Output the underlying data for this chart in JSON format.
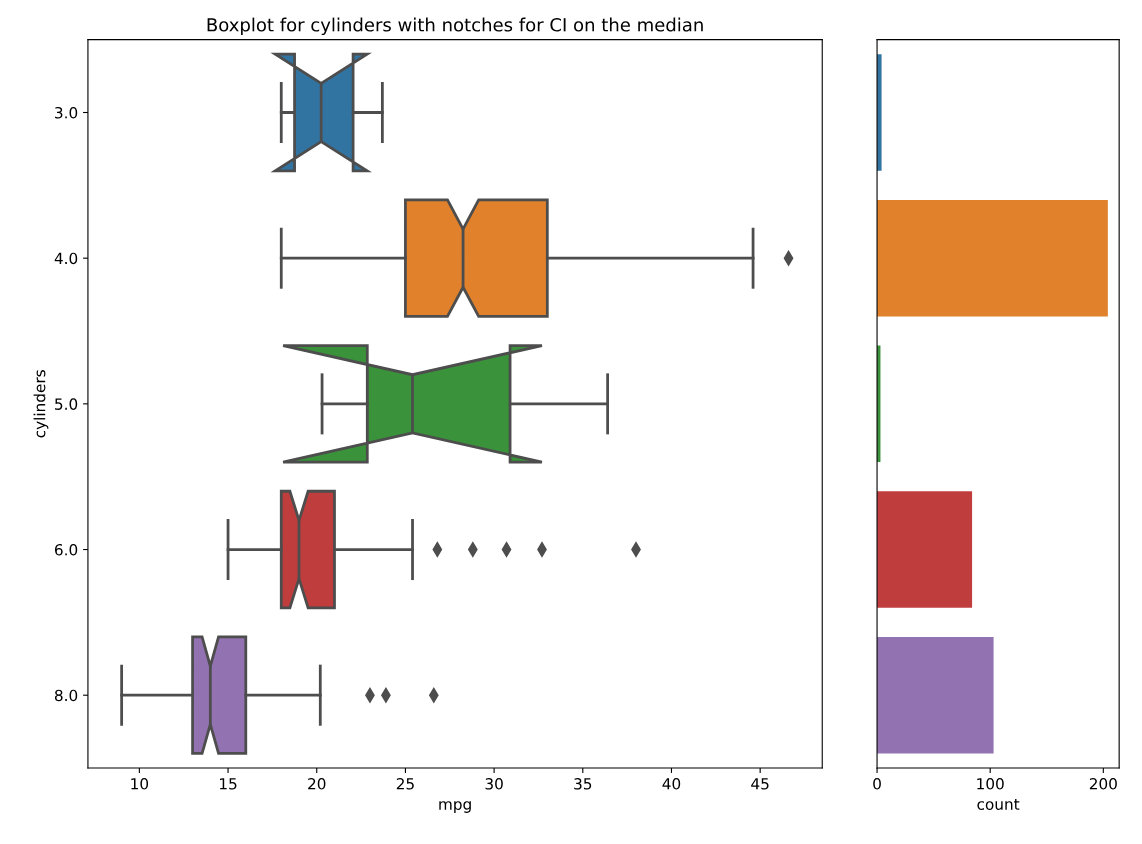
{
  "chart_data": [
    {
      "type": "box",
      "orientation": "horizontal",
      "title": "Boxplot for cylinders with notches for CI on the median",
      "xlabel": "mpg",
      "ylabel": "cylinders",
      "categories": [
        "3.0",
        "4.0",
        "5.0",
        "6.0",
        "8.0"
      ],
      "colors": [
        "#3274a1",
        "#e1812c",
        "#3a923a",
        "#c03d3e",
        "#9372b2"
      ],
      "boxes": [
        {
          "low": 18,
          "q1": 18.75,
          "median": 20.25,
          "q3": 22.05,
          "high": 23.7
        },
        {
          "low": 18,
          "q1": 25,
          "median": 28.25,
          "q3": 33,
          "high": 44.6,
          "outliers": [
            46.6
          ]
        },
        {
          "low": 20.3,
          "q1": 22.85,
          "median": 25.4,
          "q3": 30.9,
          "high": 36.4
        },
        {
          "low": 15,
          "q1": 18,
          "median": 19,
          "q3": 21,
          "high": 25.4,
          "outliers": [
            26.8,
            28.8,
            30.7,
            32.7,
            38
          ]
        },
        {
          "low": 9,
          "q1": 13,
          "median": 14,
          "q3": 16,
          "high": 20.2,
          "outliers": [
            23,
            23.9,
            26.6
          ]
        }
      ],
      "marker": "diamond",
      "xlim": [
        7.1,
        48.5
      ],
      "xticks": [
        10,
        15,
        20,
        25,
        30,
        35,
        40,
        45
      ],
      "grid": false
    },
    {
      "type": "bar",
      "orientation": "horizontal",
      "xlabel": "count",
      "categories": [
        "3.0",
        "4.0",
        "5.0",
        "6.0",
        "8.0"
      ],
      "values": [
        4,
        204,
        3,
        84,
        103
      ],
      "colors": [
        "#3274a1",
        "#e1812c",
        "#3a923a",
        "#c03d3e",
        "#9372b2"
      ],
      "xlim": [
        0,
        214
      ],
      "xticks": [
        0,
        100,
        200
      ],
      "tick_labels": "x",
      "grid": false
    }
  ]
}
